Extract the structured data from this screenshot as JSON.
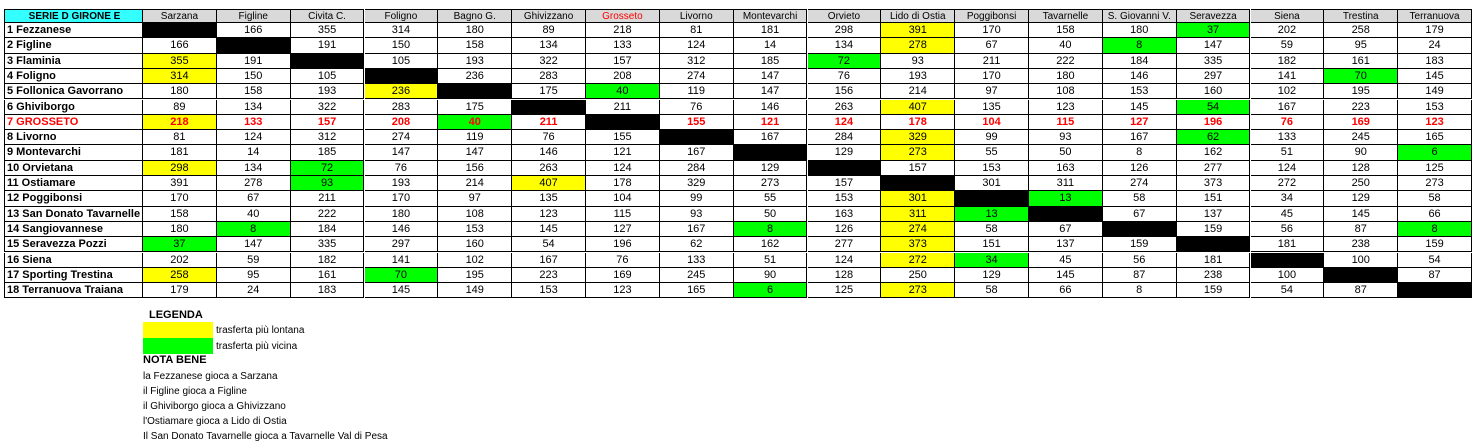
{
  "table": {
    "corner": "SERIE D GIRONE E",
    "corner_color": "#33ffff",
    "diagonal_color": "#000000",
    "columns": [
      "Sarzana",
      "Figline",
      "Civita C.",
      "Foligno",
      "Bagno G.",
      "Ghivizzano",
      {
        "label": "Grosseto",
        "color": "#ff0000"
      },
      "Livorno",
      "Montevarchi",
      "Orvieto",
      "Lido di Ostia",
      "Poggibonsi",
      "Tavarnelle",
      "S. Giovanni V.",
      "Seravezza",
      "Siena",
      "Trestina",
      "Terranuova"
    ],
    "rows": [
      {
        "team": "1 Fezzanese",
        "cells": [
          null,
          166,
          355,
          314,
          180,
          89,
          218,
          81,
          181,
          298,
          391,
          170,
          158,
          180,
          37,
          202,
          258,
          179
        ],
        "far": [
          10
        ],
        "near": [
          14
        ]
      },
      {
        "team": "2 Figline",
        "cells": [
          166,
          null,
          191,
          150,
          158,
          134,
          133,
          124,
          14,
          134,
          278,
          67,
          40,
          8,
          147,
          59,
          95,
          24
        ],
        "far": [
          10
        ],
        "near": [
          13
        ]
      },
      {
        "team": "3 Flaminia",
        "cells": [
          355,
          191,
          null,
          105,
          193,
          322,
          157,
          312,
          185,
          72,
          93,
          211,
          222,
          184,
          335,
          182,
          161,
          183
        ],
        "far": [
          0
        ],
        "near": [
          9
        ]
      },
      {
        "team": "4 Foligno",
        "cells": [
          314,
          150,
          105,
          null,
          236,
          283,
          208,
          274,
          147,
          76,
          193,
          170,
          180,
          146,
          297,
          141,
          70,
          145
        ],
        "far": [
          0
        ],
        "near": [
          16
        ]
      },
      {
        "team": "5 Follonica Gavorrano",
        "cells": [
          180,
          158,
          193,
          236,
          null,
          175,
          40,
          119,
          147,
          156,
          214,
          97,
          108,
          153,
          160,
          102,
          195,
          149
        ],
        "far": [
          3
        ],
        "near": [
          6
        ]
      },
      {
        "team": "6 Ghiviborgo",
        "cells": [
          89,
          134,
          322,
          283,
          175,
          null,
          211,
          76,
          146,
          263,
          407,
          135,
          123,
          145,
          54,
          167,
          223,
          153
        ],
        "far": [
          10
        ],
        "near": [
          14
        ]
      },
      {
        "team": "7 GROSSETO",
        "color": "#ff0000",
        "cells": [
          218,
          133,
          157,
          208,
          40,
          211,
          null,
          155,
          121,
          124,
          178,
          104,
          115,
          127,
          196,
          76,
          169,
          123
        ],
        "far": [
          0
        ],
        "near": [
          4
        ]
      },
      {
        "team": "8 Livorno",
        "cells": [
          81,
          124,
          312,
          274,
          119,
          76,
          155,
          null,
          167,
          284,
          329,
          99,
          93,
          167,
          62,
          133,
          245,
          165
        ],
        "far": [
          10
        ],
        "near": [
          14
        ]
      },
      {
        "team": "9 Montevarchi",
        "cells": [
          181,
          14,
          185,
          147,
          147,
          146,
          121,
          167,
          null,
          129,
          273,
          55,
          50,
          8,
          162,
          51,
          90,
          6
        ],
        "far": [
          10
        ],
        "near": [
          17
        ]
      },
      {
        "team": "10 Orvietana",
        "cells": [
          298,
          134,
          72,
          76,
          156,
          263,
          124,
          284,
          129,
          null,
          157,
          153,
          163,
          126,
          277,
          124,
          128,
          125
        ],
        "far": [
          0
        ],
        "near": [
          2
        ]
      },
      {
        "team": "11 Ostiamare",
        "cells": [
          391,
          278,
          93,
          193,
          214,
          407,
          178,
          329,
          273,
          157,
          null,
          301,
          311,
          274,
          373,
          272,
          250,
          273
        ],
        "far": [
          5
        ],
        "near": [
          2
        ]
      },
      {
        "team": "12 Poggibonsi",
        "cells": [
          170,
          67,
          211,
          170,
          97,
          135,
          104,
          99,
          55,
          153,
          301,
          null,
          13,
          58,
          151,
          34,
          129,
          58
        ],
        "far": [
          10
        ],
        "near": [
          12
        ]
      },
      {
        "team": "13 San Donato Tavarnelle",
        "cells": [
          158,
          40,
          222,
          180,
          108,
          123,
          115,
          93,
          50,
          163,
          311,
          13,
          null,
          67,
          137,
          45,
          145,
          66
        ],
        "far": [
          10
        ],
        "near": [
          11
        ]
      },
      {
        "team": "14 Sangiovannese",
        "cells": [
          180,
          8,
          184,
          146,
          153,
          145,
          127,
          167,
          8,
          126,
          274,
          58,
          67,
          null,
          159,
          56,
          87,
          8
        ],
        "far": [
          10
        ],
        "near": [
          1,
          8,
          17
        ]
      },
      {
        "team": "15 Seravezza Pozzi",
        "cells": [
          37,
          147,
          335,
          297,
          160,
          54,
          196,
          62,
          162,
          277,
          373,
          151,
          137,
          159,
          null,
          181,
          238,
          159
        ],
        "far": [
          10
        ],
        "near": [
          0
        ]
      },
      {
        "team": "16 Siena",
        "cells": [
          202,
          59,
          182,
          141,
          102,
          167,
          76,
          133,
          51,
          124,
          272,
          34,
          45,
          56,
          181,
          null,
          100,
          54
        ],
        "far": [
          10
        ],
        "near": [
          11
        ]
      },
      {
        "team": "17 Sporting Trestina",
        "cells": [
          258,
          95,
          161,
          70,
          195,
          223,
          169,
          245,
          90,
          128,
          250,
          129,
          145,
          87,
          238,
          100,
          null,
          87
        ],
        "far": [
          0
        ],
        "near": [
          3
        ]
      },
      {
        "team": "18 Terranuova Traiana",
        "cells": [
          179,
          24,
          183,
          145,
          149,
          153,
          123,
          165,
          6,
          125,
          273,
          58,
          66,
          8,
          159,
          54,
          87,
          null
        ],
        "far": [
          10
        ],
        "near": [
          8
        ]
      }
    ]
  },
  "legend": {
    "title": "LEGENDA",
    "far": {
      "color": "#ffff00",
      "label": "trasferta più lontana"
    },
    "near": {
      "color": "#00ff00",
      "label": "trasferta più vicina"
    }
  },
  "notes": {
    "title": "NOTA BENE",
    "lines": [
      "la Fezzanese gioca a Sarzana",
      "il Figline gioca a Figline",
      "il Ghiviborgo gioca a Ghivizzano",
      "l'Ostiamare gioca a Lido di Ostia",
      "Il San Donato Tavarnelle gioca a Tavarnelle Val di Pesa"
    ]
  }
}
